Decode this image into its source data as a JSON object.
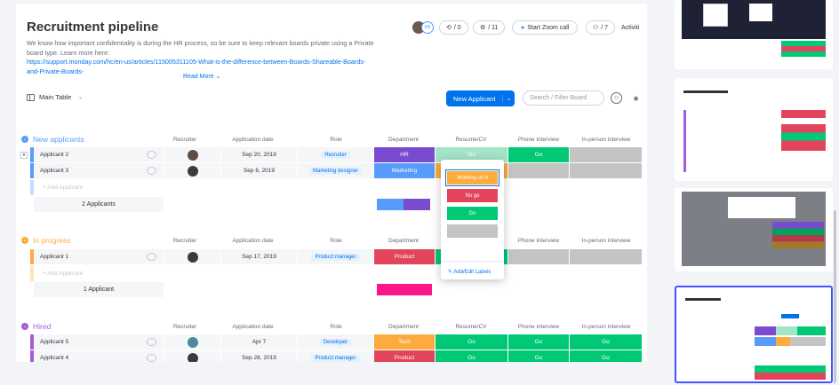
{
  "board": {
    "title": "Recruitment pipeline",
    "description_text": "We know how important confidentiality is during the HR process, so be sure to keep relevant boards private using a Private board type. Learn more here:",
    "description_link": "https://support.monday.com/hc/en-us/articles/115005311105-What-is-the-difference-between-Boards-Shareable-Boards-and-Private-Boards-",
    "read_more": "Read More ⌄"
  },
  "toolbar": {
    "activity_count": "/ 0",
    "automations_count": "/ 11",
    "zoom_label": "Start Zoom call",
    "members_count": "/ 7",
    "activity_label": "Activiti"
  },
  "view": {
    "name": "Main Table",
    "new_button": "New Applicant",
    "search_placeholder": "Search / Filter Board"
  },
  "columns": [
    "Recruiter",
    "Application date",
    "Role",
    "Department",
    "Resume/CV",
    "Phone interview",
    "In-person interview"
  ],
  "groups": [
    {
      "title": "New applicants",
      "color": "#579bfc",
      "rows": [
        {
          "name": "Applicant 2",
          "date": "Sep 20, 2019",
          "role": "Recruiter",
          "dept": "HR",
          "dept_color": "#784bd1",
          "resume": "Go",
          "resume_color": "#a3e4c7",
          "phone": "Go",
          "phone_color": "#00c875",
          "inperson": ""
        },
        {
          "name": "Applicant 3",
          "date": "Sep 6, 2019",
          "role": "Marketing designer",
          "dept": "Marketing",
          "dept_color": "#579bfc",
          "resume": "",
          "resume_color": "#fdab3d",
          "phone": "",
          "phone_color": "#c4c4c4",
          "inperson": ""
        }
      ],
      "add_label": "+ Add Applicant",
      "summary": "2 Applicants"
    },
    {
      "title": "In progress",
      "color": "#fdab3d",
      "rows": [
        {
          "name": "Applicant 1",
          "date": "Sep 17, 2019",
          "role": "Product manager",
          "dept": "Product",
          "dept_color": "#e2445c",
          "resume": "",
          "resume_color": "#00c875",
          "phone": "",
          "phone_color": "#c4c4c4",
          "inperson": ""
        }
      ],
      "add_label": "+ Add Applicant",
      "summary": "1 Applicant"
    },
    {
      "title": "Hired",
      "color": "#a25ddc",
      "rows": [
        {
          "name": "Applicant 5",
          "date": "Apr 7",
          "role": "Developer",
          "dept": "Tech",
          "dept_color": "#fdab3d",
          "resume": "Go",
          "resume_color": "#00c875",
          "phone": "Go",
          "phone_color": "#00c875",
          "inperson": "Go"
        },
        {
          "name": "Applicant 4",
          "date": "Sep 28, 2019",
          "role": "Product manager",
          "dept": "Product",
          "dept_color": "#e2445c",
          "resume": "Go",
          "resume_color": "#00c875",
          "phone": "Go",
          "phone_color": "#00c875",
          "inperson": "Go"
        }
      ]
    }
  ],
  "status_picker": {
    "options": [
      {
        "label": "Working on it",
        "color": "#fdab3d"
      },
      {
        "label": "No go",
        "color": "#e2445c"
      },
      {
        "label": "Go",
        "color": "#00c875"
      },
      {
        "label": "",
        "color": "#c4c4c4"
      }
    ],
    "edit_label": "Add/Edit Labels"
  }
}
